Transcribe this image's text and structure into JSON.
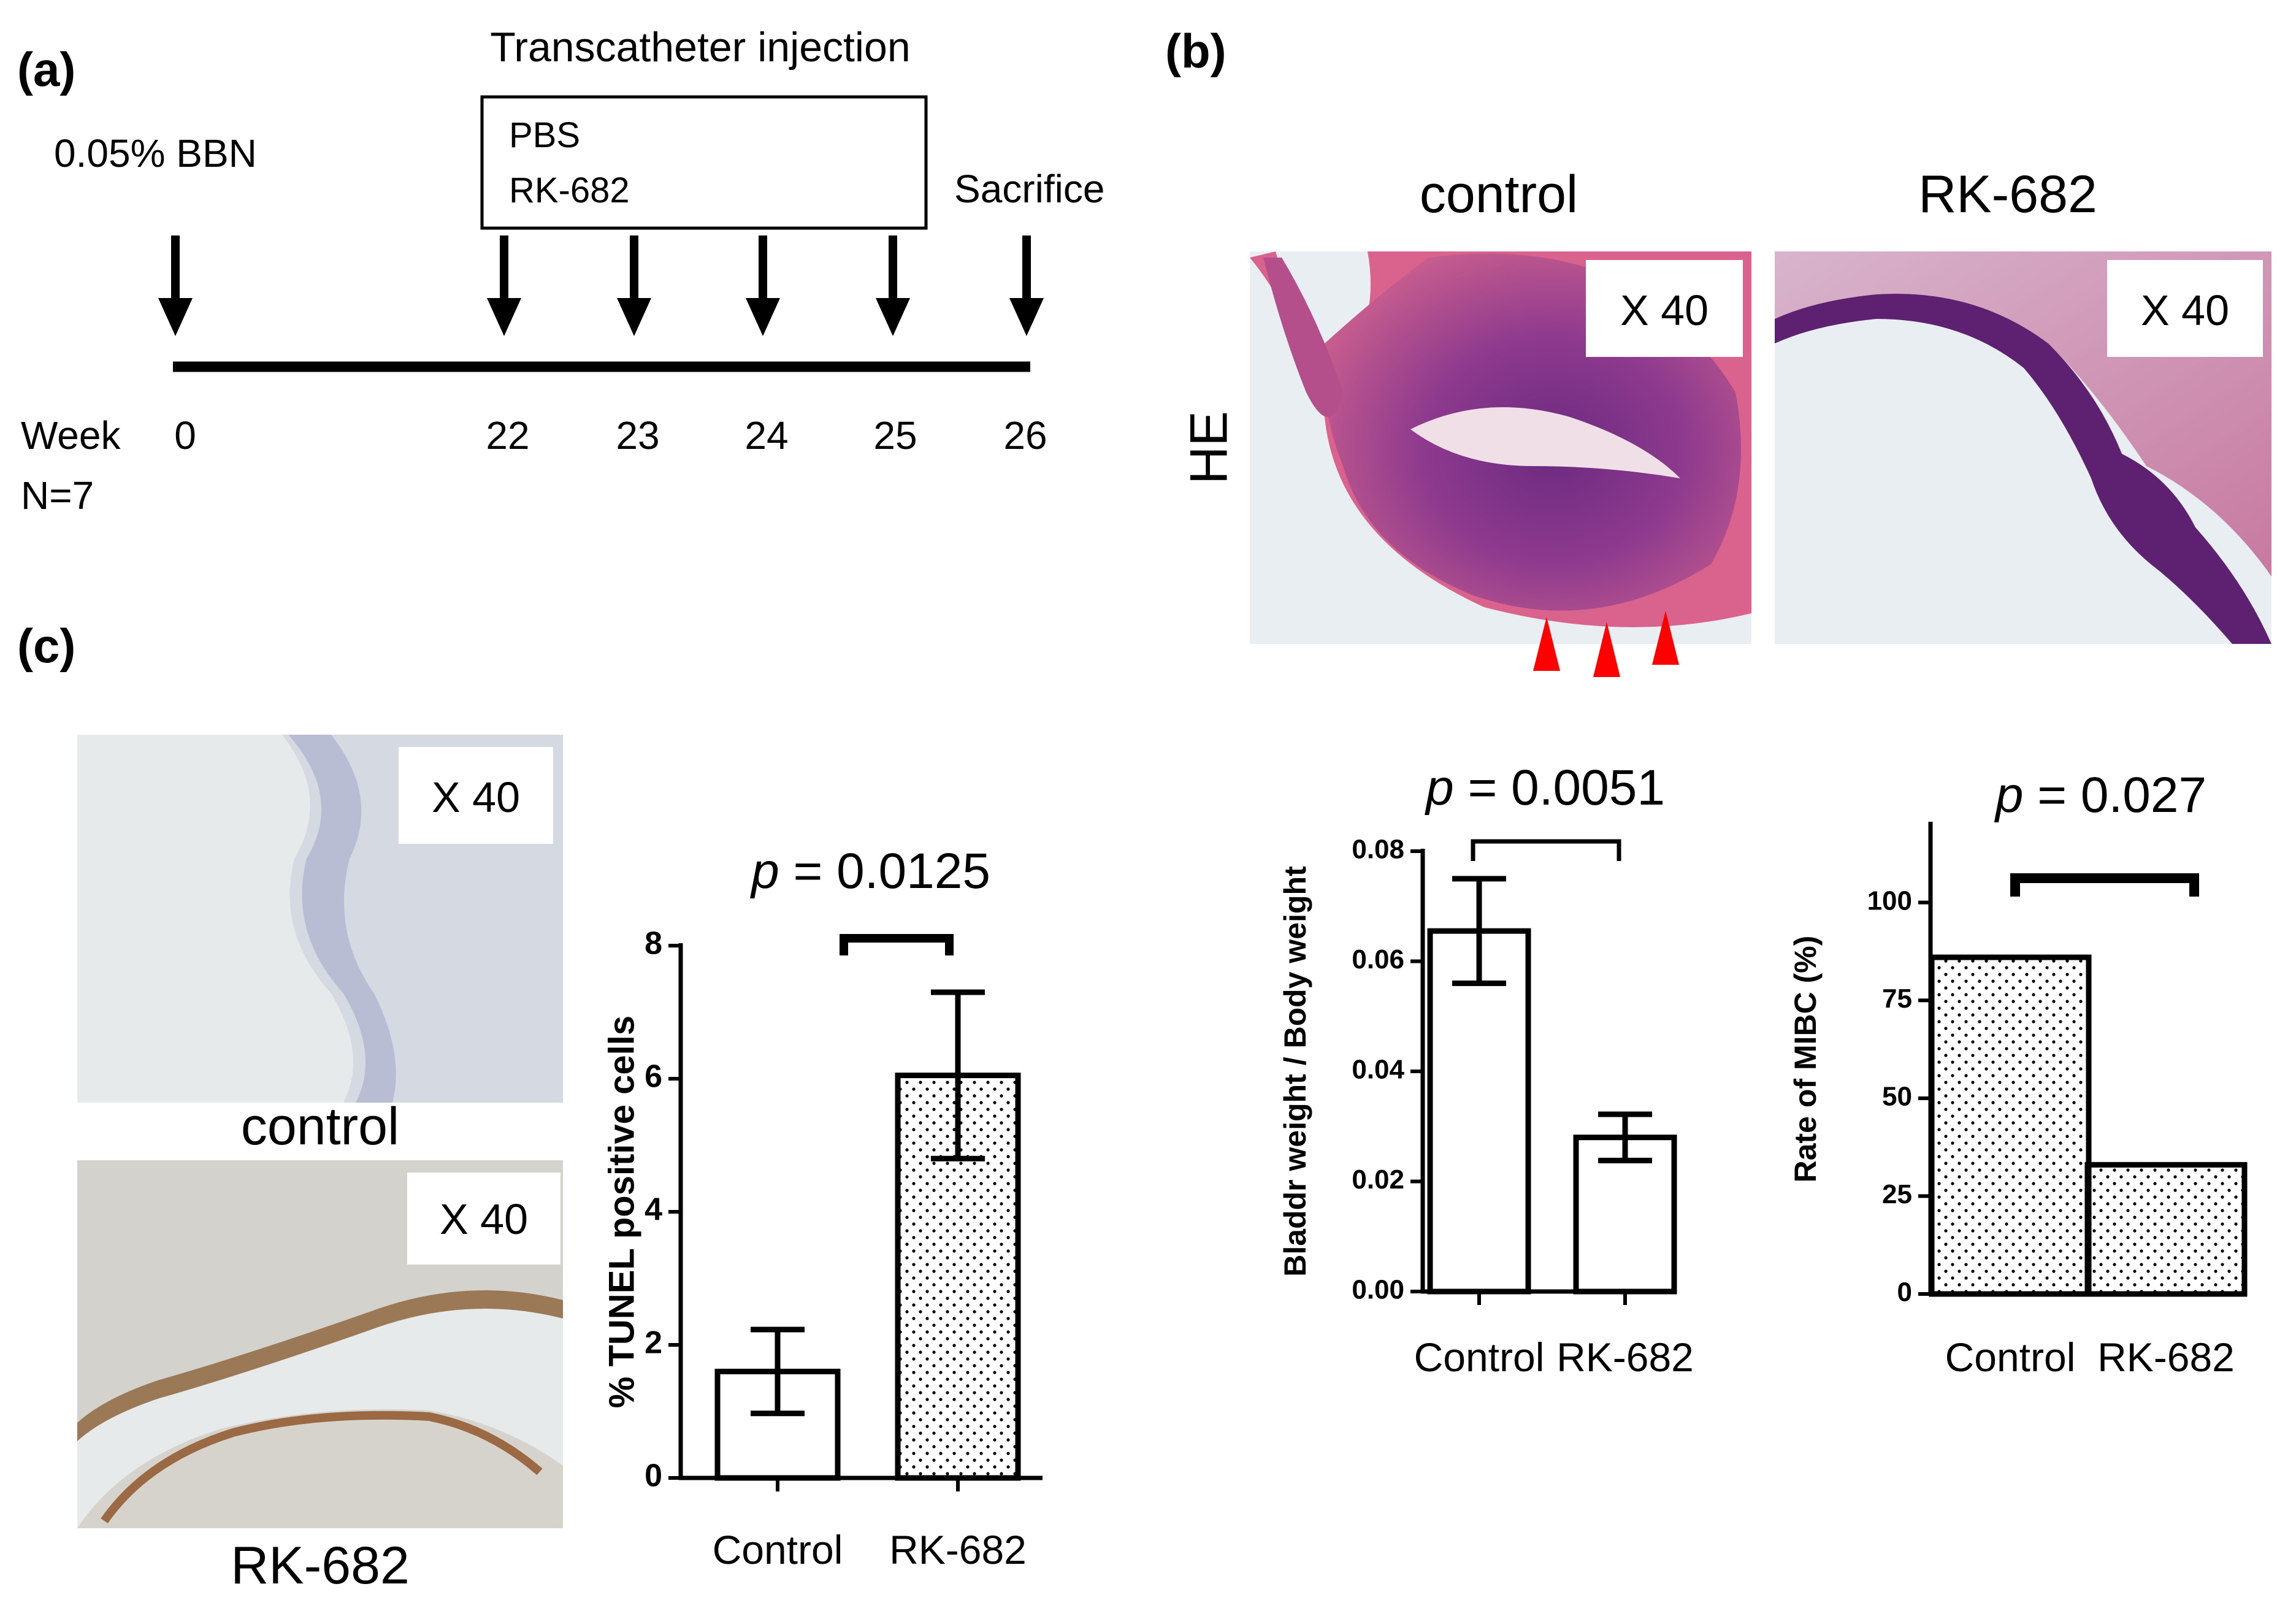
{
  "panels": {
    "a": "(a)",
    "b": "(b)",
    "c": "(c)"
  },
  "timeline": {
    "treatment_title": "Transcatheter injection",
    "box_lines": [
      "PBS",
      "RK-682"
    ],
    "start_label": "0.05% BBN",
    "end_label": "Sacrifice",
    "week_label": "Week",
    "n_label": "N=7",
    "weeks": [
      "0",
      "22",
      "23",
      "24",
      "25",
      "26"
    ]
  },
  "he": {
    "row_label": "HE",
    "col_control": "control",
    "col_rk": "RK-682",
    "magnification": "X 40"
  },
  "tunel_images": {
    "magnification": "X 40",
    "label_control": "control",
    "label_rk": "RK-682"
  },
  "colors": {
    "he_pink": "#d9638c",
    "he_purple": "#7a2a82",
    "he_bg": "#e9eef3",
    "ihc_bg": "#e6eaea",
    "arrowhead": "#ff0000"
  },
  "chart_data": [
    {
      "type": "bar",
      "name": "tunel",
      "categories": [
        "Control",
        "RK-682"
      ],
      "values": [
        1.6,
        6.05
      ],
      "errors": [
        0.63,
        1.25
      ],
      "patterns": [
        "open",
        "dotted"
      ],
      "ylabel": "% TUNEL positive cells",
      "ylim": [
        0,
        8
      ],
      "yticks": [
        "0",
        "2",
        "4",
        "6",
        "8"
      ],
      "annotation": {
        "p_symbol": "p",
        "p_value": "= 0.0125"
      }
    },
    {
      "type": "bar",
      "name": "bladder",
      "categories": [
        "Control",
        "RK-682"
      ],
      "values": [
        0.0655,
        0.028
      ],
      "errors": [
        0.0095,
        0.0042
      ],
      "patterns": [
        "open",
        "open"
      ],
      "ylabel": "Bladdr weight / Body weight",
      "ylim": [
        0,
        0.08
      ],
      "yticks": [
        "0.00",
        "0.02",
        "0.04",
        "0.06",
        "0.08"
      ],
      "annotation": {
        "p_symbol": "p",
        "p_value": "= 0.0051"
      }
    },
    {
      "type": "bar",
      "name": "mibc",
      "categories": [
        "Control",
        "RK-682"
      ],
      "values": [
        86,
        33
      ],
      "errors": [
        0,
        0
      ],
      "patterns": [
        "dotted",
        "dotted"
      ],
      "ylabel": "Rate of MIBC (%)",
      "ylim": [
        0,
        120
      ],
      "yticks": [
        "0",
        "25",
        "50",
        "75",
        "100"
      ],
      "annotation": {
        "p_symbol": "p",
        "p_value": "= 0.027"
      }
    }
  ]
}
